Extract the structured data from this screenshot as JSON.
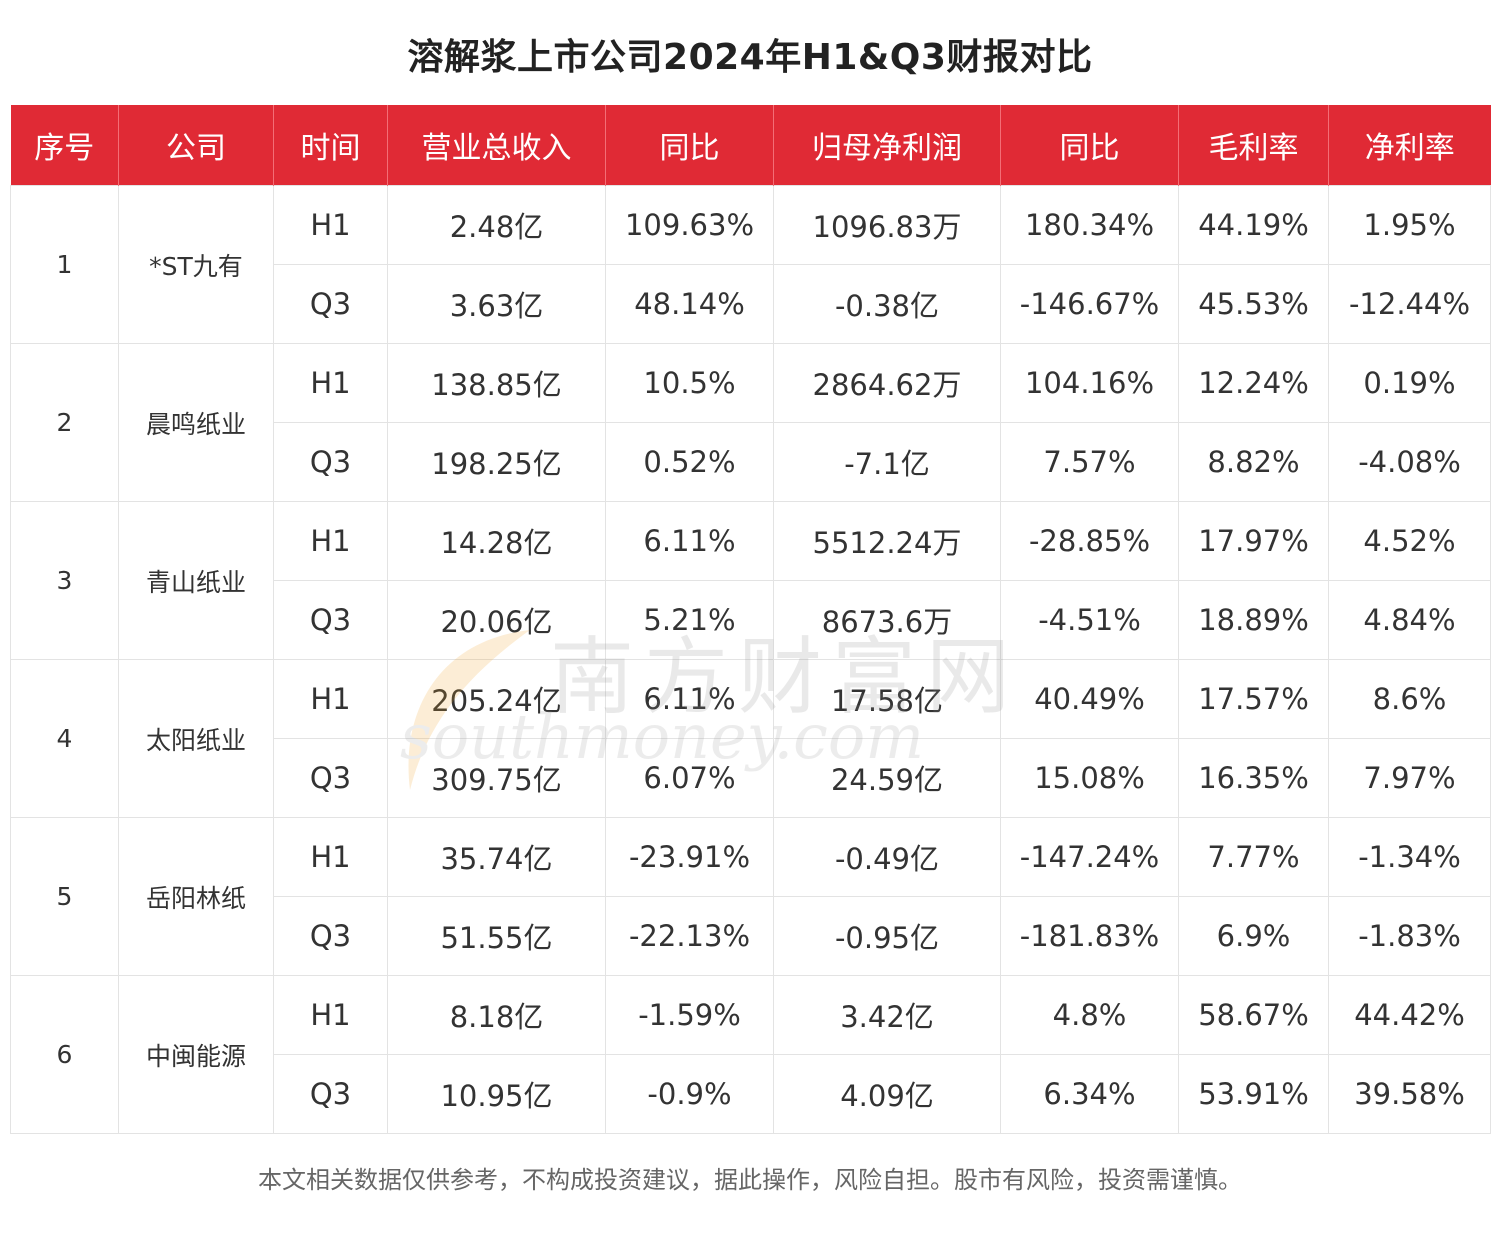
{
  "title": "溶解浆上市公司2024年H1&Q3财报对比",
  "table": {
    "headers": [
      "序号",
      "公司",
      "时间",
      "营业总收入",
      "同比",
      "归母净利润",
      "同比",
      "毛利率",
      "净利率"
    ],
    "companies": [
      {
        "index": "1",
        "name": "*ST九有",
        "rows": [
          {
            "period": "H1",
            "revenue": "2.48亿",
            "revenue_yoy": "109.63%",
            "net_profit": "1096.83万",
            "profit_yoy": "180.34%",
            "gross_margin": "44.19%",
            "net_margin": "1.95%"
          },
          {
            "period": "Q3",
            "revenue": "3.63亿",
            "revenue_yoy": "48.14%",
            "net_profit": "-0.38亿",
            "profit_yoy": "-146.67%",
            "gross_margin": "45.53%",
            "net_margin": "-12.44%"
          }
        ]
      },
      {
        "index": "2",
        "name": "晨鸣纸业",
        "rows": [
          {
            "period": "H1",
            "revenue": "138.85亿",
            "revenue_yoy": "10.5%",
            "net_profit": "2864.62万",
            "profit_yoy": "104.16%",
            "gross_margin": "12.24%",
            "net_margin": "0.19%"
          },
          {
            "period": "Q3",
            "revenue": "198.25亿",
            "revenue_yoy": "0.52%",
            "net_profit": "-7.1亿",
            "profit_yoy": "7.57%",
            "gross_margin": "8.82%",
            "net_margin": "-4.08%"
          }
        ]
      },
      {
        "index": "3",
        "name": "青山纸业",
        "rows": [
          {
            "period": "H1",
            "revenue": "14.28亿",
            "revenue_yoy": "6.11%",
            "net_profit": "5512.24万",
            "profit_yoy": "-28.85%",
            "gross_margin": "17.97%",
            "net_margin": "4.52%"
          },
          {
            "period": "Q3",
            "revenue": "20.06亿",
            "revenue_yoy": "5.21%",
            "net_profit": "8673.6万",
            "profit_yoy": "-4.51%",
            "gross_margin": "18.89%",
            "net_margin": "4.84%"
          }
        ]
      },
      {
        "index": "4",
        "name": "太阳纸业",
        "rows": [
          {
            "period": "H1",
            "revenue": "205.24亿",
            "revenue_yoy": "6.11%",
            "net_profit": "17.58亿",
            "profit_yoy": "40.49%",
            "gross_margin": "17.57%",
            "net_margin": "8.6%"
          },
          {
            "period": "Q3",
            "revenue": "309.75亿",
            "revenue_yoy": "6.07%",
            "net_profit": "24.59亿",
            "profit_yoy": "15.08%",
            "gross_margin": "16.35%",
            "net_margin": "7.97%"
          }
        ]
      },
      {
        "index": "5",
        "name": "岳阳林纸",
        "rows": [
          {
            "period": "H1",
            "revenue": "35.74亿",
            "revenue_yoy": "-23.91%",
            "net_profit": "-0.49亿",
            "profit_yoy": "-147.24%",
            "gross_margin": "7.77%",
            "net_margin": "-1.34%"
          },
          {
            "period": "Q3",
            "revenue": "51.55亿",
            "revenue_yoy": "-22.13%",
            "net_profit": "-0.95亿",
            "profit_yoy": "-181.83%",
            "gross_margin": "6.9%",
            "net_margin": "-1.83%"
          }
        ]
      },
      {
        "index": "6",
        "name": "中闽能源",
        "rows": [
          {
            "period": "H1",
            "revenue": "8.18亿",
            "revenue_yoy": "-1.59%",
            "net_profit": "3.42亿",
            "profit_yoy": "4.8%",
            "gross_margin": "58.67%",
            "net_margin": "44.42%"
          },
          {
            "period": "Q3",
            "revenue": "10.95亿",
            "revenue_yoy": "-0.9%",
            "net_profit": "4.09亿",
            "profit_yoy": "6.34%",
            "gross_margin": "53.91%",
            "net_margin": "39.58%"
          }
        ]
      }
    ]
  },
  "watermark": {
    "cn": "南方财富网",
    "en": "southmoney.com"
  },
  "disclaimer": "本文相关数据仅供参考，不构成投资建议，据此操作，风险自担。股市有风险，投资需谨慎。",
  "colors": {
    "header_bg": "#e02a35",
    "header_text": "#ffffff",
    "border": "#e3e3e3"
  }
}
